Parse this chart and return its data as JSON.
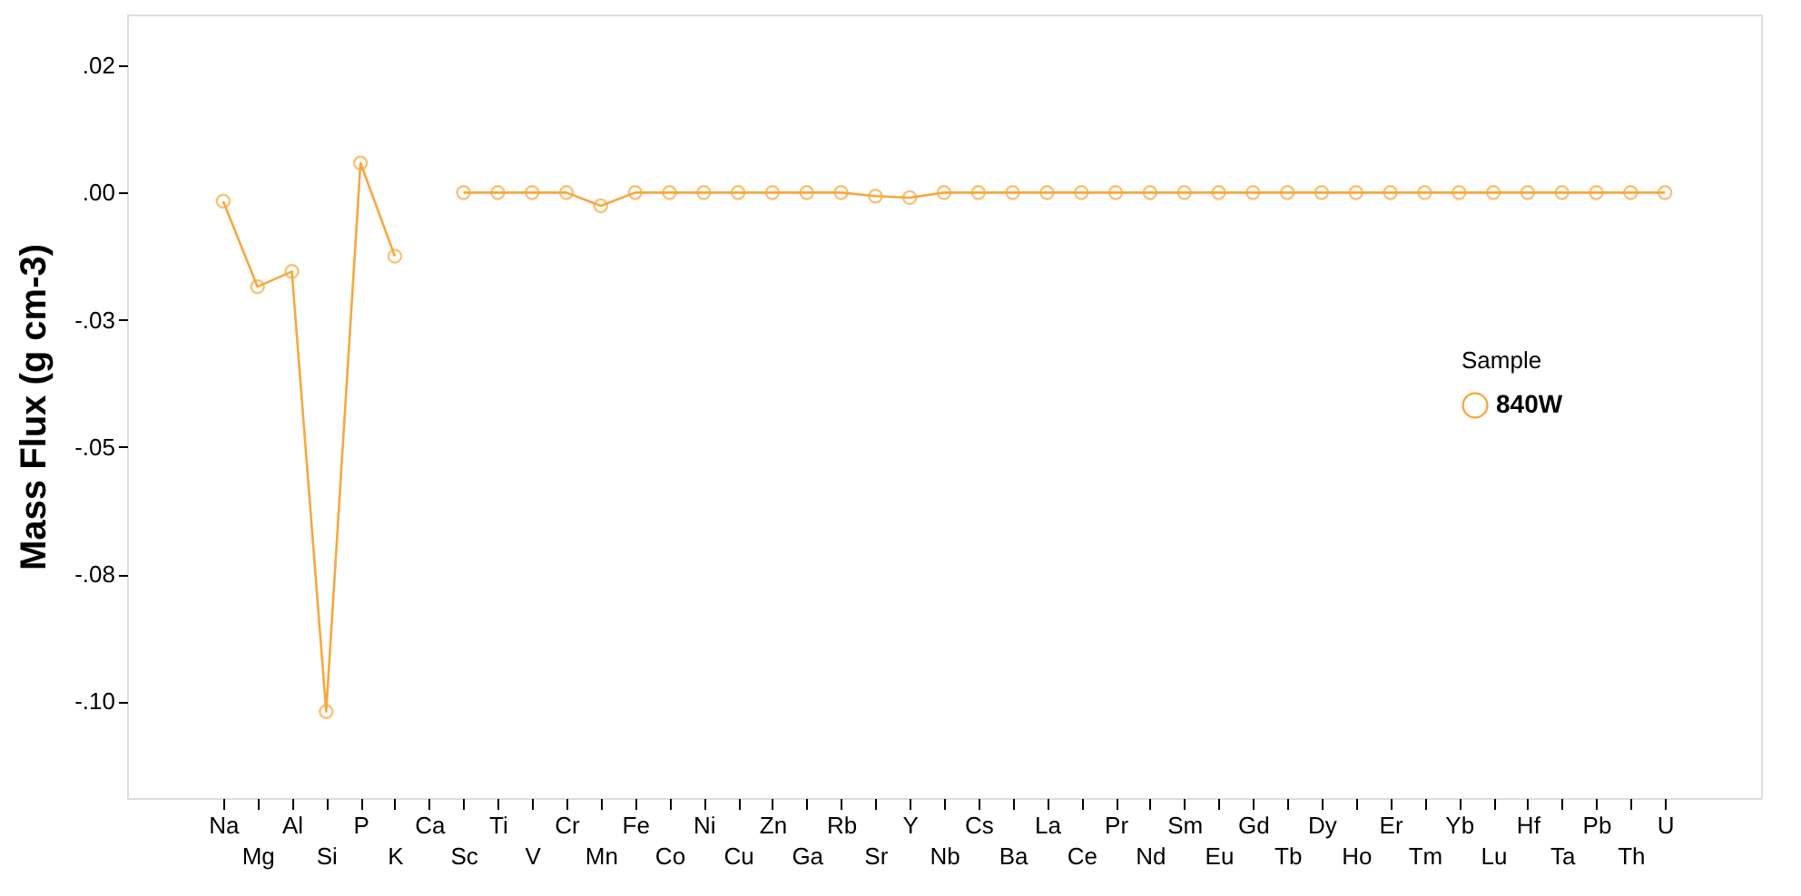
{
  "chart_data": {
    "type": "line",
    "ylabel": "Mass Flux (g cm-3)",
    "legend_title": "Sample",
    "categories": [
      "Na",
      "Mg",
      "Al",
      "Si",
      "P",
      "K",
      "Ca",
      "Sc",
      "Ti",
      "V",
      "Cr",
      "Mn",
      "Fe",
      "Co",
      "Ni",
      "Cu",
      "Zn",
      "Ga",
      "Rb",
      "Sr",
      "Y",
      "Nb",
      "Cs",
      "Ba",
      "La",
      "Ce",
      "Pr",
      "Nd",
      "Sm",
      "Eu",
      "Gd",
      "Tb",
      "Dy",
      "Ho",
      "Er",
      "Tm",
      "Yb",
      "Lu",
      "Hf",
      "Ta",
      "Pb",
      "Th",
      "U"
    ],
    "series": [
      {
        "name": "840W",
        "color": "#f7a83e",
        "values": [
          -0.0017,
          -0.0185,
          -0.0155,
          -0.102,
          0.0058,
          -0.0125,
          null,
          0,
          0,
          0,
          0,
          -0.0026,
          0,
          0,
          0,
          0,
          0,
          0,
          0,
          -0.0007,
          -0.001,
          0,
          0,
          0,
          0,
          0,
          0,
          0,
          0,
          0,
          0,
          0,
          0,
          0,
          0,
          0,
          0,
          0,
          0,
          0,
          0,
          0,
          0
        ]
      }
    ],
    "ylim": [
      -0.119,
      0.035
    ],
    "yticks": [
      {
        "value": 0.025,
        "label": ".02"
      },
      {
        "value": 0,
        "label": ".00"
      },
      {
        "value": -0.025,
        "label": "-.03"
      },
      {
        "value": -0.05,
        "label": "-.05"
      },
      {
        "value": -0.075,
        "label": "-.08"
      },
      {
        "value": -0.1,
        "label": "-.10"
      }
    ],
    "grid": false,
    "legend": "right",
    "marker": "circle",
    "line_style": "solid"
  }
}
